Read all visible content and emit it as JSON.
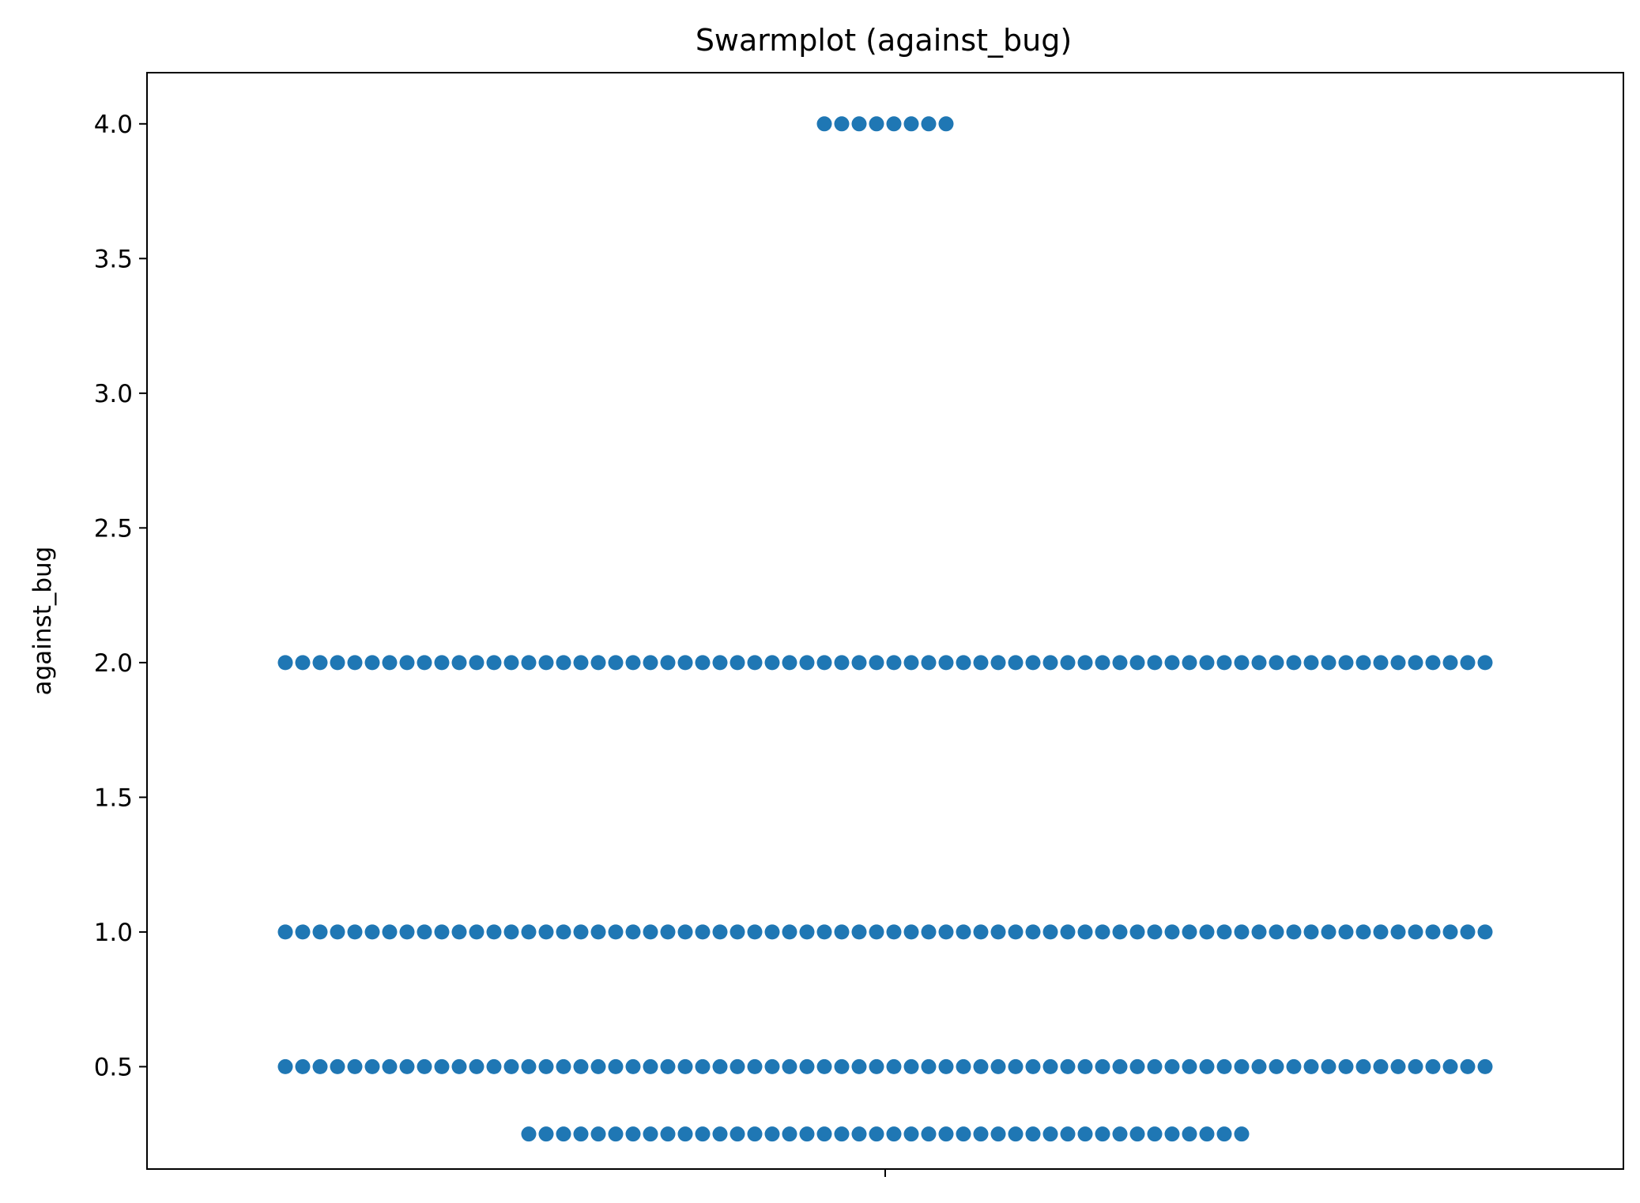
{
  "chart_data": {
    "type": "scatter",
    "title": "Swarmplot (against_bug)",
    "xlabel": "",
    "ylabel": "against_bug",
    "ylim": [
      0.12,
      4.19
    ],
    "yticks": [
      0.5,
      1.0,
      1.5,
      2.0,
      2.5,
      3.0,
      3.5,
      4.0
    ],
    "ytick_labels": [
      "0.5",
      "1.0",
      "1.5",
      "2.0",
      "2.5",
      "3.0",
      "3.5",
      "4.0"
    ],
    "xticks": [
      ""
    ],
    "grid": false,
    "color": "#1f77b4",
    "groups": [
      {
        "value": 4.0,
        "count": 8
      },
      {
        "value": 2.0,
        "count": 70
      },
      {
        "value": 1.0,
        "count": 70
      },
      {
        "value": 0.5,
        "count": 70
      },
      {
        "value": 0.25,
        "count": 42
      }
    ]
  }
}
